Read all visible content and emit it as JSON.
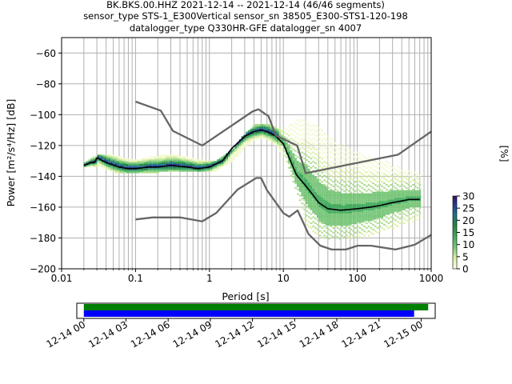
{
  "chart_data": [
    {
      "type": "heatmap",
      "title_lines": [
        "BK.BKS.00.HHZ   2021-12-14 -- 2021-12-14  (46/46 segments)",
        "sensor_type STS-1_E300Vertical sensor_sn 38505_E300-STS1-120-198",
        "datalogger_type Q330HR-GFE datalogger_sn 4007"
      ],
      "xlabel": "Period [s]",
      "ylabel": "Power [m²/s⁴/Hz] [dB]",
      "xscale": "log",
      "xlim": [
        0.01,
        1000
      ],
      "ylim": [
        -200,
        -50
      ],
      "x_ticks": [
        0.01,
        0.1,
        1,
        10,
        100,
        1000
      ],
      "x_tick_labels": [
        "0.01",
        "0.1",
        "1",
        "10",
        "100",
        "1000"
      ],
      "y_ticks": [
        -200,
        -180,
        -160,
        -140,
        -120,
        -100,
        -80,
        -60
      ],
      "y_tick_labels": [
        "−200",
        "−180",
        "−160",
        "−140",
        "−120",
        "−100",
        "−80",
        "−60"
      ],
      "grid": true,
      "colorbar": {
        "label": "[%]",
        "range": [
          0,
          30
        ],
        "ticks": [
          "0",
          "5",
          "10",
          "15",
          "20",
          "25",
          "30"
        ],
        "colors": [
          "#ffffe5",
          "#d9f0a3",
          "#78c679",
          "#41ab5d",
          "#238443",
          "#1d6f8a",
          "#253494",
          "#3f0f5e"
        ]
      },
      "series": [
        {
          "name": "",
          "role": "mean",
          "color": "#000000",
          "x": [
            0.02,
            0.025,
            0.028,
            0.03,
            0.04,
            0.06,
            0.08,
            0.1,
            0.15,
            0.2,
            0.3,
            0.5,
            0.7,
            1.0,
            1.5,
            2.0,
            3.0,
            4.0,
            5.0,
            6.0,
            8.0,
            10,
            12,
            15,
            20,
            25,
            30,
            40,
            60,
            100,
            150,
            200,
            300,
            400,
            500,
            700
          ],
          "y": [
            -133,
            -131,
            -131,
            -128,
            -131,
            -134,
            -135,
            -135,
            -134,
            -134,
            -133,
            -134,
            -135,
            -134,
            -130,
            -122,
            -114,
            -111,
            -110,
            -111,
            -114,
            -119,
            -128,
            -139,
            -146,
            -152,
            -157,
            -161,
            -162,
            -161,
            -160,
            -159,
            -157,
            -156,
            -155,
            -155
          ]
        },
        {
          "name": "",
          "role": "noise-model-high",
          "color": "#666666",
          "x": [
            0.1,
            0.22,
            0.32,
            0.8,
            3.8,
            4.6,
            6.3,
            7.9,
            15.4,
            20,
            354.8,
            1000
          ],
          "y": [
            -91.5,
            -97.4,
            -110.5,
            -120,
            -98,
            -96.5,
            -101,
            -113.5,
            -120,
            -138,
            -126,
            -111
          ]
        },
        {
          "name": "",
          "role": "noise-model-low",
          "color": "#666666",
          "x": [
            0.1,
            0.17,
            0.4,
            0.8,
            1.24,
            2.4,
            4.3,
            5.0,
            6.0,
            10,
            12,
            15.6,
            21.9,
            31.6,
            45,
            70,
            101,
            154,
            328,
            600,
            1000
          ],
          "y": [
            -168,
            -166.7,
            -166.7,
            -169.2,
            -163.7,
            -148.6,
            -141.1,
            -141.1,
            -149,
            -163.8,
            -166.2,
            -162.1,
            -177.5,
            -185,
            -187.5,
            -187.5,
            -185,
            -185,
            -187.5,
            -184.4,
            -178
          ]
        }
      ],
      "density": {
        "x": [
          0.02,
          0.03,
          0.05,
          0.08,
          0.12,
          0.2,
          0.3,
          0.5,
          0.8,
          1.2,
          2,
          3,
          4,
          5,
          6,
          8,
          10,
          12,
          15,
          20,
          30,
          50,
          100,
          200,
          500,
          700
        ],
        "y_low": [
          -134,
          -133,
          -137,
          -138,
          -138,
          -137,
          -137,
          -137,
          -137,
          -136,
          -130,
          -120,
          -116,
          -115,
          -116,
          -120,
          -128,
          -139,
          -152,
          -172,
          -180,
          -181,
          -180,
          -176,
          -170,
          -168
        ],
        "y_high": [
          -132,
          -127,
          -128,
          -130,
          -130,
          -128,
          -127,
          -129,
          -131,
          -131,
          -124,
          -113,
          -108,
          -107,
          -107,
          -110,
          -110,
          -108,
          -105,
          -104,
          -110,
          -118,
          -126,
          -130,
          -138,
          -140
        ]
      }
    },
    {
      "type": "timeline",
      "x_tick_labels": [
        "12-14 00",
        "12-14 03",
        "12-14 06",
        "12-14 09",
        "12-14 12",
        "12-14 15",
        "12-14 18",
        "12-14 21",
        "12-15 00"
      ],
      "xlim_hours": [
        -0.5,
        25
      ],
      "bars": [
        {
          "role": "data-coverage",
          "color": "#008000",
          "start_hours": 0,
          "end_hours": 24.5
        },
        {
          "role": "psd-segments",
          "color": "#0000ff",
          "start_hours": 0,
          "end_hours": 23.5
        }
      ]
    }
  ]
}
